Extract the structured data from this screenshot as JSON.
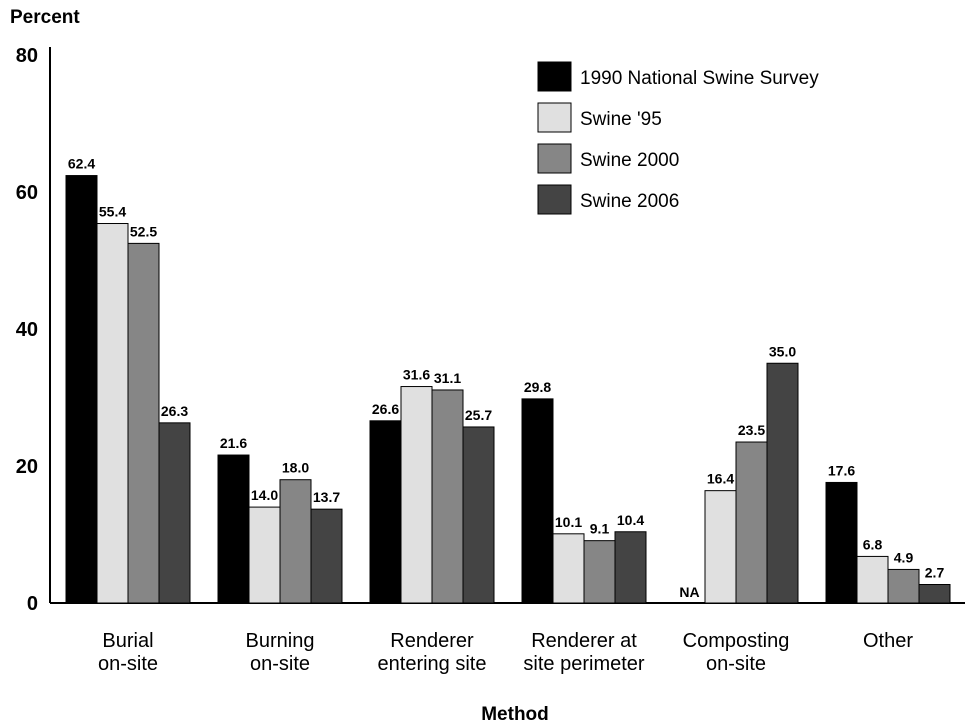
{
  "chart_data": {
    "type": "bar",
    "ylabel": "Percent",
    "xlabel": "Method",
    "ylim": [
      0,
      80
    ],
    "yticks": [
      0,
      20,
      40,
      60,
      80
    ],
    "categories": [
      [
        "Burial",
        "on-site"
      ],
      [
        "Burning",
        "on-site"
      ],
      [
        "Renderer",
        "entering site"
      ],
      [
        "Renderer at",
        "site perimeter"
      ],
      [
        "Composting",
        "on-site"
      ],
      [
        "Other"
      ]
    ],
    "series": [
      {
        "name": "1990 National Swine Survey",
        "color": "#000000",
        "values": [
          62.4,
          21.6,
          26.6,
          29.8,
          null,
          17.6
        ],
        "labels": [
          "62.4",
          "21.6",
          "26.6",
          "29.8",
          "NA",
          "17.6"
        ]
      },
      {
        "name": "Swine '95",
        "color": "#e0e0e0",
        "values": [
          55.4,
          14.0,
          31.6,
          10.1,
          16.4,
          6.8
        ],
        "labels": [
          "55.4",
          "14.0",
          "31.6",
          "10.1",
          "16.4",
          "6.8"
        ]
      },
      {
        "name": "Swine 2000",
        "color": "#868686",
        "values": [
          52.5,
          18.0,
          31.1,
          9.1,
          23.5,
          4.9
        ],
        "labels": [
          "52.5",
          "18.0",
          "31.1",
          "9.1",
          "23.5",
          "4.9"
        ]
      },
      {
        "name": "Swine 2006",
        "color": "#444444",
        "values": [
          26.3,
          13.7,
          25.7,
          10.4,
          35.0,
          2.7
        ],
        "labels": [
          "26.3",
          "13.7",
          "25.7",
          "10.4",
          "35.0",
          "2.7"
        ]
      }
    ],
    "legend_position": "top-right",
    "grid": false
  }
}
